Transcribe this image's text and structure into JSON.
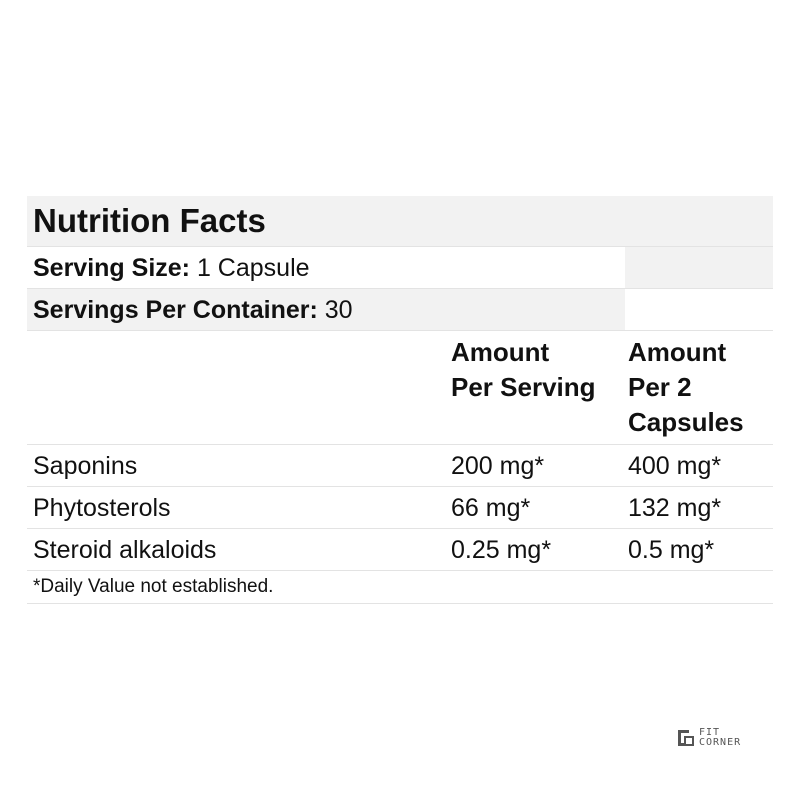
{
  "nutrition_facts": {
    "title": "Nutrition Facts",
    "serving_size": {
      "label": "Serving Size:",
      "value": "1 Capsule"
    },
    "servings_per_container": {
      "label": "Servings Per Container:",
      "value": "30"
    },
    "columns": [
      {
        "line1": "Amount",
        "line2": "Per Serving",
        "line3": ""
      },
      {
        "line1": "Amount",
        "line2": "Per 2",
        "line3": "Capsules"
      }
    ],
    "rows": [
      {
        "name": "Saponins",
        "per_serving": "200 mg*",
        "per_2_capsules": "400 mg*"
      },
      {
        "name": "Phytosterols",
        "per_serving": "66 mg*",
        "per_2_capsules": "132 mg*"
      },
      {
        "name": "Steroid alkaloids",
        "per_serving": "0.25 mg*",
        "per_2_capsules": "0.5 mg*"
      }
    ],
    "footnote": "*Daily Value not established."
  },
  "logo": {
    "line1": "FIT",
    "line2": "CORNER",
    "icon": "fit-corner-logo-icon"
  },
  "colors": {
    "row_shade": "#f2f2f2",
    "divider": "#e3e3e3",
    "text": "#111111"
  }
}
